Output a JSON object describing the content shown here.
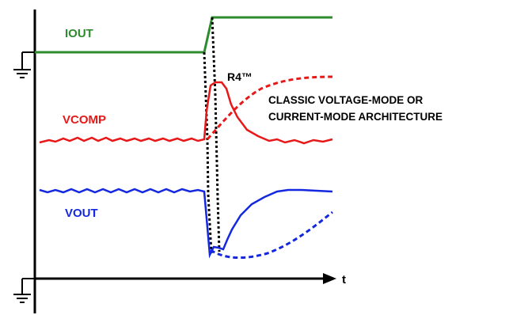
{
  "labels": {
    "iout": "IOUT",
    "vcomp": "VCOMP",
    "vout": "VOUT",
    "r4": "R4™",
    "classic_line1": "CLASSIC VOLTAGE-MODE OR",
    "classic_line2": "CURRENT-MODE ARCHITECTURE",
    "time_axis": "t"
  },
  "colors": {
    "iout": "#2e8b2e",
    "vcomp": "#e81818",
    "vout": "#1428e0",
    "axes": "#000000",
    "text": "#000000"
  },
  "icons": [
    "ground-symbol",
    "ground-symbol"
  ]
}
